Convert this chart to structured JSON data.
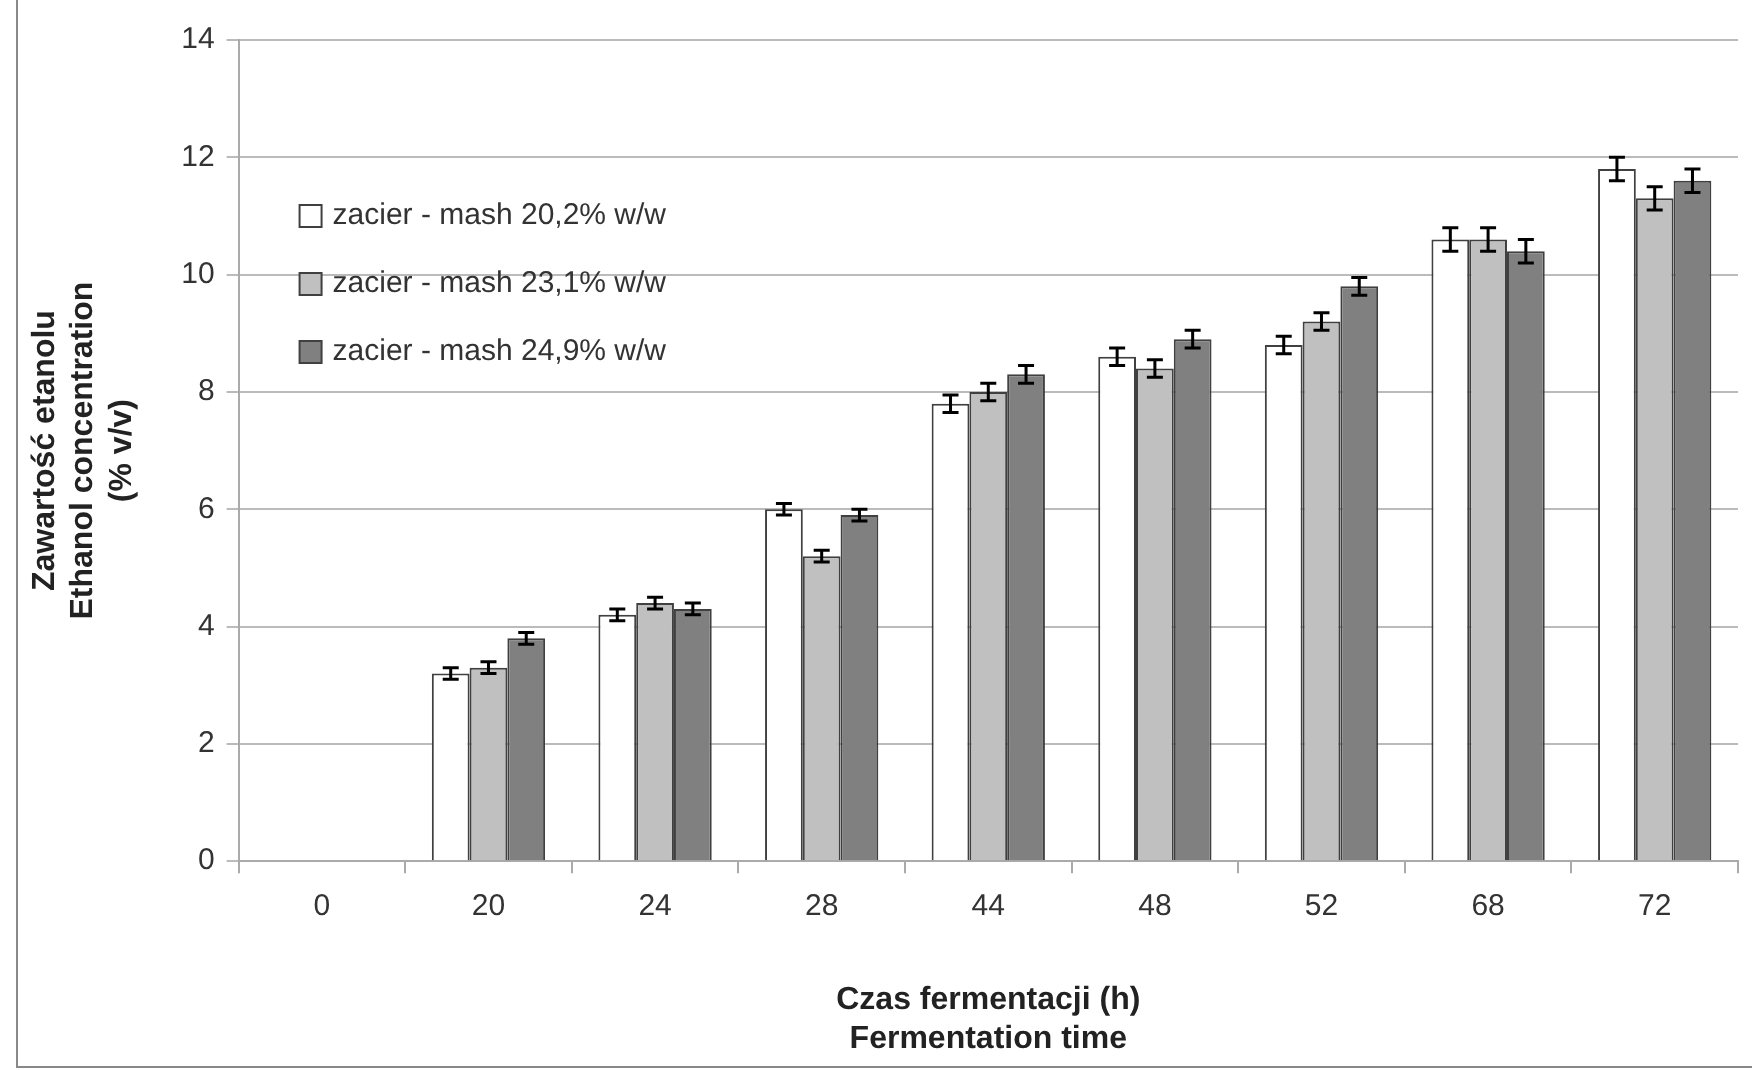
{
  "chart_data": {
    "type": "bar",
    "xlabel": "Czas fermentacji (h)\nFermentation time",
    "ylabel": "Zawartość etanolu\nEthanol concentration\n(% v/v)",
    "categories": [
      "0",
      "20",
      "24",
      "28",
      "44",
      "48",
      "52",
      "68",
      "72"
    ],
    "series": [
      {
        "name": "zacier - mash 20,2% w/w",
        "color": "#ffffff",
        "values": [
          0,
          3.2,
          4.2,
          6.0,
          7.8,
          8.6,
          8.8,
          10.6,
          11.8
        ],
        "errors": [
          null,
          0.1,
          0.1,
          0.1,
          0.15,
          0.15,
          0.15,
          0.2,
          0.2
        ]
      },
      {
        "name": "zacier - mash 23,1% w/w",
        "color": "#c0c0c0",
        "values": [
          0,
          3.3,
          4.4,
          5.2,
          8.0,
          8.4,
          9.2,
          10.6,
          11.3
        ],
        "errors": [
          null,
          0.1,
          0.1,
          0.1,
          0.15,
          0.15,
          0.15,
          0.2,
          0.2
        ]
      },
      {
        "name": "zacier - mash 24,9% w/w",
        "color": "#808080",
        "values": [
          0,
          3.8,
          4.3,
          5.9,
          8.3,
          8.9,
          9.8,
          10.4,
          11.6
        ],
        "errors": [
          null,
          0.1,
          0.1,
          0.1,
          0.15,
          0.15,
          0.15,
          0.2,
          0.2
        ]
      }
    ],
    "ylim": [
      0,
      14
    ],
    "yticks": [
      0,
      2,
      4,
      6,
      8,
      10,
      12,
      14
    ],
    "grid": "y",
    "legend": "top left"
  }
}
